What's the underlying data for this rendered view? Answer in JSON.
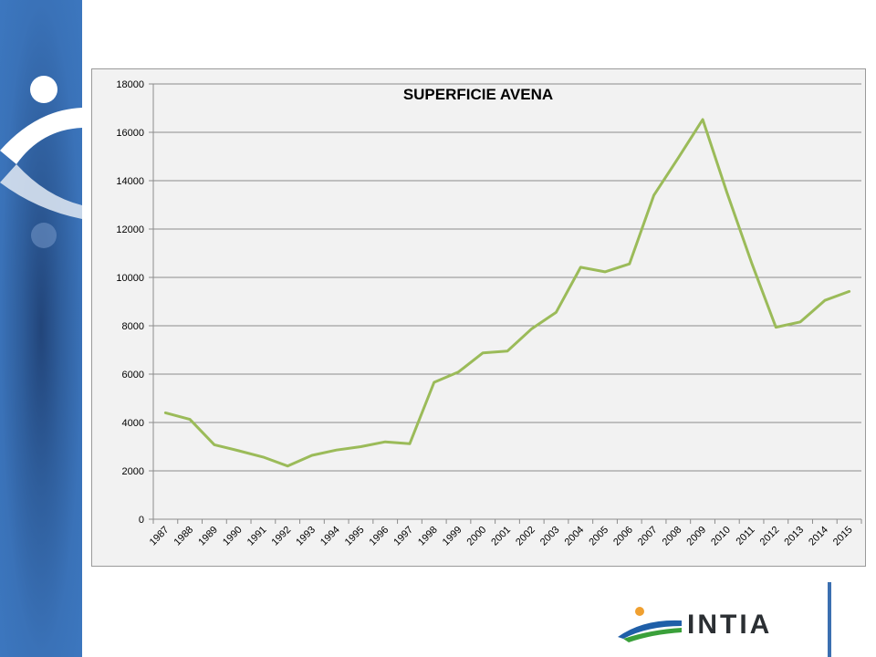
{
  "logo": {
    "text": "INTIA"
  },
  "colors": {
    "series": "#9bbb59",
    "band": "#3b73b9",
    "rule": "#3b6fb0"
  },
  "chart_data": {
    "type": "line",
    "title": "SUPERFICIE AVENA",
    "xlabel": "",
    "ylabel": "",
    "ylim": [
      0,
      18000
    ],
    "yticks": [
      "0",
      "2000",
      "4000",
      "6000",
      "8000",
      "10000",
      "12000",
      "14000",
      "16000",
      "18000"
    ],
    "grid": true,
    "legend": "none",
    "categories": [
      "1987",
      "1988",
      "1989",
      "1990",
      "1991",
      "1992",
      "1993",
      "1994",
      "1995",
      "1996",
      "1997",
      "1998",
      "1999",
      "2000",
      "2001",
      "2002",
      "2003",
      "2004",
      "2005",
      "2006",
      "2007",
      "2008",
      "2009",
      "2010",
      "2011",
      "2012",
      "2013",
      "2014",
      "2015"
    ],
    "series": [
      {
        "values": [
          4400,
          4130,
          3080,
          2830,
          2570,
          2200,
          2640,
          2860,
          3000,
          3200,
          3120,
          5660,
          6090,
          6880,
          6950,
          7880,
          8560,
          10420,
          10230,
          10560,
          13400,
          14940,
          16530,
          13490,
          10610,
          7940,
          8160,
          9050,
          9420
        ]
      }
    ]
  }
}
